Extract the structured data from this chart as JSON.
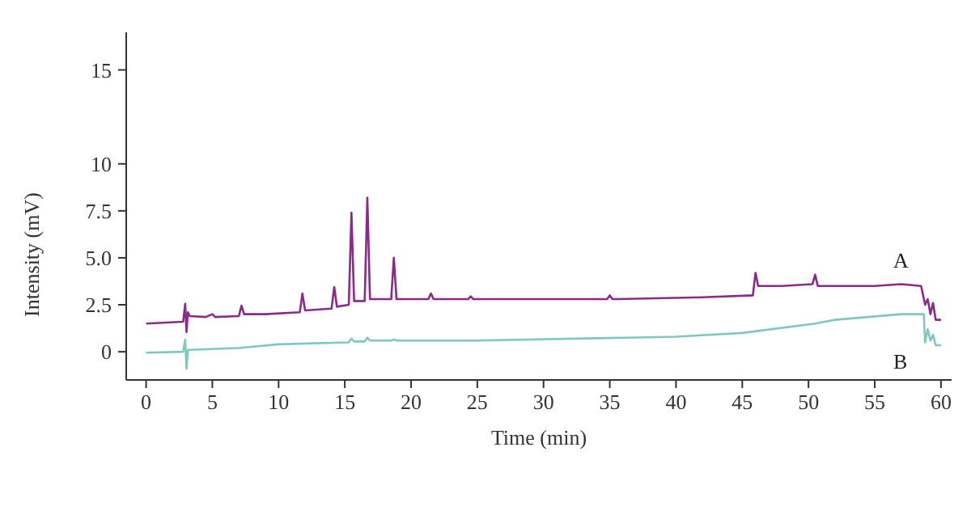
{
  "chart_data": {
    "type": "line",
    "xlabel": "Time (min)",
    "ylabel": "Intensity (mV)",
    "xlim": [
      -1.5,
      60.8
    ],
    "xticks": [
      0,
      5,
      10,
      15,
      20,
      25,
      30,
      35,
      40,
      45,
      50,
      55,
      60
    ],
    "ylim": [
      -1.5,
      17
    ],
    "yticks": [
      0,
      2.5,
      {
        "value": 5,
        "label": "5.0"
      },
      {
        "value": 7.5,
        "label": "7.5"
      },
      10,
      15
    ],
    "grid": false,
    "legend": false,
    "marker": "none",
    "line_style": "solid",
    "series": [
      {
        "name": "A",
        "color": "#8b2a8b",
        "x": [
          0,
          2.8,
          2.95,
          3.05,
          3.15,
          3.3,
          4.5,
          5,
          5.2,
          7,
          7.2,
          7.4,
          9,
          11.6,
          11.8,
          12,
          14,
          14.2,
          14.4,
          15.3,
          15.5,
          15.7,
          16.5,
          16.7,
          16.9,
          18.5,
          18.7,
          18.9,
          21.3,
          21.5,
          21.7,
          24.3,
          24.5,
          24.7,
          30,
          34.8,
          35,
          35.2,
          42,
          45.8,
          46,
          46.2,
          48,
          50.3,
          50.5,
          50.7,
          55,
          57,
          58.5,
          58.8,
          59,
          59.2,
          59.4,
          59.6,
          60
        ],
        "values": [
          1.5,
          1.6,
          2.55,
          1.05,
          2.1,
          1.9,
          1.85,
          2.0,
          1.85,
          1.9,
          2.45,
          2.0,
          2.0,
          2.1,
          3.1,
          2.2,
          2.3,
          3.45,
          2.4,
          2.5,
          7.4,
          2.7,
          2.7,
          8.2,
          2.8,
          2.8,
          5.0,
          2.8,
          2.8,
          3.1,
          2.8,
          2.8,
          2.95,
          2.8,
          2.8,
          2.8,
          3.0,
          2.8,
          2.9,
          3.0,
          4.2,
          3.5,
          3.5,
          3.6,
          4.1,
          3.5,
          3.5,
          3.6,
          3.5,
          2.5,
          2.8,
          2.0,
          2.6,
          1.7,
          1.7
        ]
      },
      {
        "name": "B",
        "color": "#7ec8c0",
        "x": [
          0,
          2.8,
          2.95,
          3.05,
          3.15,
          3.3,
          7,
          10,
          15.3,
          15.5,
          15.7,
          16.5,
          16.7,
          16.9,
          18.5,
          18.7,
          18.9,
          25,
          40,
          45,
          50.5,
          52,
          57,
          58.7,
          58.8,
          59,
          59.2,
          59.4,
          59.6,
          60
        ],
        "values": [
          -0.05,
          0,
          0.65,
          -0.9,
          0.1,
          0.1,
          0.2,
          0.4,
          0.5,
          0.7,
          0.55,
          0.55,
          0.75,
          0.6,
          0.6,
          0.65,
          0.6,
          0.6,
          0.8,
          1.0,
          1.5,
          1.7,
          2.0,
          2.0,
          0.5,
          1.2,
          0.6,
          0.9,
          0.35,
          0.35
        ]
      }
    ]
  }
}
